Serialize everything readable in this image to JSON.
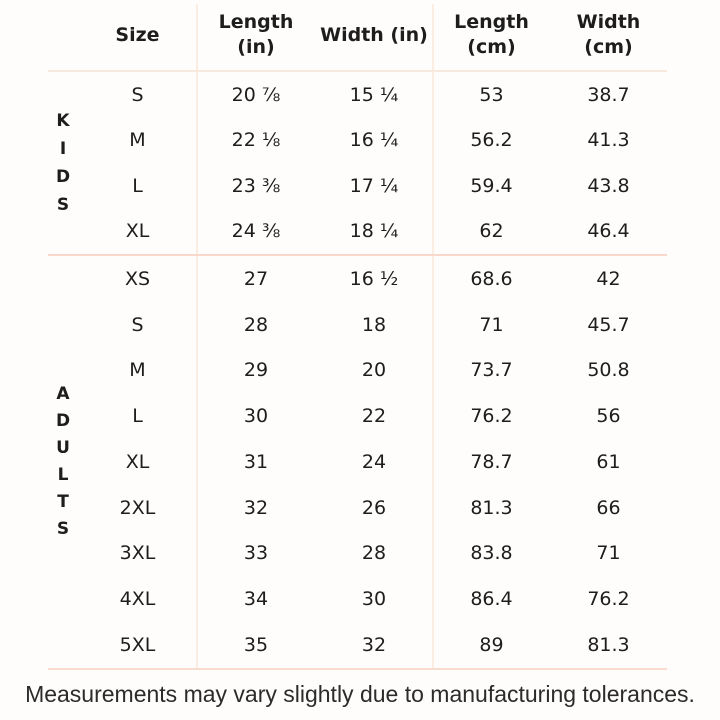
{
  "colors": {
    "background": "#fffdfb",
    "text": "#1d1d1d",
    "vertical_divider": "#fcece1",
    "header_rule": "#f9e9dc",
    "kids_section_rule": "#f8d8cb",
    "adults_section_rule": "#f9dcd0"
  },
  "header": {
    "size": "Size",
    "length_in": {
      "l1": "Length",
      "l2": "(in)"
    },
    "width_in": "Width (in)",
    "length_cm": {
      "l1": "Length",
      "l2": "(cm)"
    },
    "width_cm": {
      "l1": "Width",
      "l2": "(cm)"
    }
  },
  "chart_data": {
    "type": "table",
    "columns": [
      "Size",
      "Length (in)",
      "Width (in)",
      "Length (cm)",
      "Width (cm)"
    ],
    "groups": [
      {
        "label": "KIDS",
        "rows": [
          {
            "size": "S",
            "len_in": "20 ⅞",
            "wid_in": "15 ¼",
            "len_cm": "53",
            "wid_cm": "38.7"
          },
          {
            "size": "M",
            "len_in": "22 ⅛",
            "wid_in": "16 ¼",
            "len_cm": "56.2",
            "wid_cm": "41.3"
          },
          {
            "size": "L",
            "len_in": "23 ⅜",
            "wid_in": "17 ¼",
            "len_cm": "59.4",
            "wid_cm": "43.8"
          },
          {
            "size": "XL",
            "len_in": "24 ⅜",
            "wid_in": "18 ¼",
            "len_cm": "62",
            "wid_cm": "46.4"
          }
        ]
      },
      {
        "label": "ADULTS",
        "rows": [
          {
            "size": "XS",
            "len_in": "27",
            "wid_in": "16 ½",
            "len_cm": "68.6",
            "wid_cm": "42"
          },
          {
            "size": "S",
            "len_in": "28",
            "wid_in": "18",
            "len_cm": "71",
            "wid_cm": "45.7"
          },
          {
            "size": "M",
            "len_in": "29",
            "wid_in": "20",
            "len_cm": "73.7",
            "wid_cm": "50.8"
          },
          {
            "size": "L",
            "len_in": "30",
            "wid_in": "22",
            "len_cm": "76.2",
            "wid_cm": "56"
          },
          {
            "size": "XL",
            "len_in": "31",
            "wid_in": "24",
            "len_cm": "78.7",
            "wid_cm": "61"
          },
          {
            "size": "2XL",
            "len_in": "32",
            "wid_in": "26",
            "len_cm": "81.3",
            "wid_cm": "66"
          },
          {
            "size": "3XL",
            "len_in": "33",
            "wid_in": "28",
            "len_cm": "83.8",
            "wid_cm": "71"
          },
          {
            "size": "4XL",
            "len_in": "34",
            "wid_in": "30",
            "len_cm": "86.4",
            "wid_cm": "76.2"
          },
          {
            "size": "5XL",
            "len_in": "35",
            "wid_in": "32",
            "len_cm": "89",
            "wid_cm": "81.3"
          }
        ]
      }
    ],
    "footnote": "Measurements may vary slightly due to manufacturing tolerances."
  }
}
